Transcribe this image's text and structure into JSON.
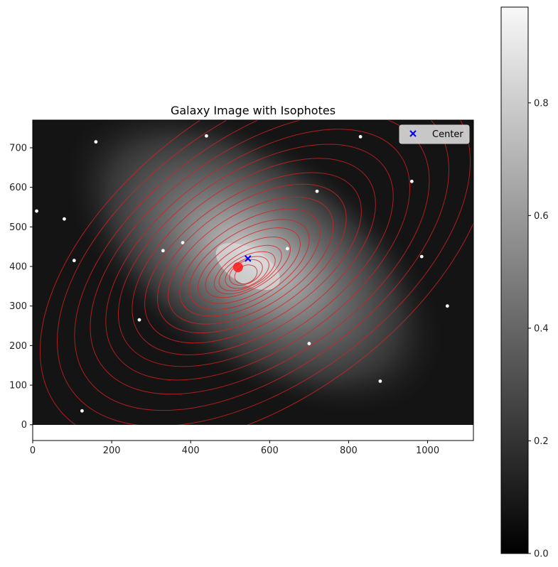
{
  "chart_data": {
    "type": "image",
    "title": "Galaxy Image with Isophotes",
    "xlabel": "",
    "ylabel": "",
    "xlim": [
      0,
      1116
    ],
    "ylim": [
      -40,
      770
    ],
    "image_extent": {
      "x": [
        0,
        1116
      ],
      "y": [
        0,
        770
      ]
    },
    "x_ticks": [
      0,
      200,
      400,
      600,
      800,
      1000
    ],
    "y_ticks": [
      0,
      100,
      200,
      300,
      400,
      500,
      600,
      700
    ],
    "center": {
      "x": 545,
      "y": 420,
      "label": "Center",
      "color": "#0000ff",
      "marker": "x"
    },
    "isophote_color": "#d62020",
    "isophotes": [
      {
        "cx": 540,
        "cy": 380,
        "a": 30,
        "b": 22,
        "angle": -28
      },
      {
        "cx": 540,
        "cy": 385,
        "a": 45,
        "b": 28,
        "angle": -28
      },
      {
        "cx": 543,
        "cy": 385,
        "a": 60,
        "b": 33,
        "angle": -28
      },
      {
        "cx": 543,
        "cy": 388,
        "a": 78,
        "b": 38,
        "angle": -28
      },
      {
        "cx": 545,
        "cy": 392,
        "a": 95,
        "b": 45,
        "angle": -30
      },
      {
        "cx": 545,
        "cy": 398,
        "a": 120,
        "b": 55,
        "angle": -30
      },
      {
        "cx": 548,
        "cy": 402,
        "a": 145,
        "b": 70,
        "angle": -31
      },
      {
        "cx": 548,
        "cy": 405,
        "a": 170,
        "b": 85,
        "angle": -31
      },
      {
        "cx": 550,
        "cy": 410,
        "a": 200,
        "b": 100,
        "angle": -32
      },
      {
        "cx": 552,
        "cy": 415,
        "a": 235,
        "b": 120,
        "angle": -32
      },
      {
        "cx": 555,
        "cy": 420,
        "a": 270,
        "b": 140,
        "angle": -33
      },
      {
        "cx": 558,
        "cy": 422,
        "a": 310,
        "b": 160,
        "angle": -33
      },
      {
        "cx": 560,
        "cy": 425,
        "a": 350,
        "b": 185,
        "angle": -34
      },
      {
        "cx": 565,
        "cy": 428,
        "a": 395,
        "b": 210,
        "angle": -34
      },
      {
        "cx": 570,
        "cy": 430,
        "a": 440,
        "b": 235,
        "angle": -35
      },
      {
        "cx": 575,
        "cy": 432,
        "a": 490,
        "b": 265,
        "angle": -35
      },
      {
        "cx": 580,
        "cy": 435,
        "a": 545,
        "b": 295,
        "angle": -36
      },
      {
        "cx": 585,
        "cy": 438,
        "a": 600,
        "b": 330,
        "angle": -36
      },
      {
        "cx": 590,
        "cy": 440,
        "a": 660,
        "b": 365,
        "angle": -37
      }
    ],
    "stars": [
      {
        "x": 10,
        "y": 540
      },
      {
        "x": 105,
        "y": 415
      },
      {
        "x": 380,
        "y": 460
      },
      {
        "x": 645,
        "y": 445
      },
      {
        "x": 440,
        "y": 730
      },
      {
        "x": 830,
        "y": 728
      },
      {
        "x": 960,
        "y": 615
      },
      {
        "x": 985,
        "y": 425
      },
      {
        "x": 80,
        "y": 520
      },
      {
        "x": 160,
        "y": 715
      },
      {
        "x": 720,
        "y": 590
      },
      {
        "x": 1050,
        "y": 300
      },
      {
        "x": 270,
        "y": 265
      },
      {
        "x": 880,
        "y": 110
      },
      {
        "x": 125,
        "y": 35
      },
      {
        "x": 700,
        "y": 205
      },
      {
        "x": 330,
        "y": 440
      }
    ],
    "colorbar": {
      "cmap": "gray",
      "range": [
        0,
        0.97
      ],
      "ticks": [
        0.0,
        0.2,
        0.4,
        0.6,
        0.8
      ],
      "tick_labels": [
        "0.0",
        "0.2",
        "0.4",
        "0.6",
        "0.8"
      ]
    },
    "legend": {
      "location": "top-right",
      "entries": [
        "Center"
      ]
    },
    "grid": false
  }
}
